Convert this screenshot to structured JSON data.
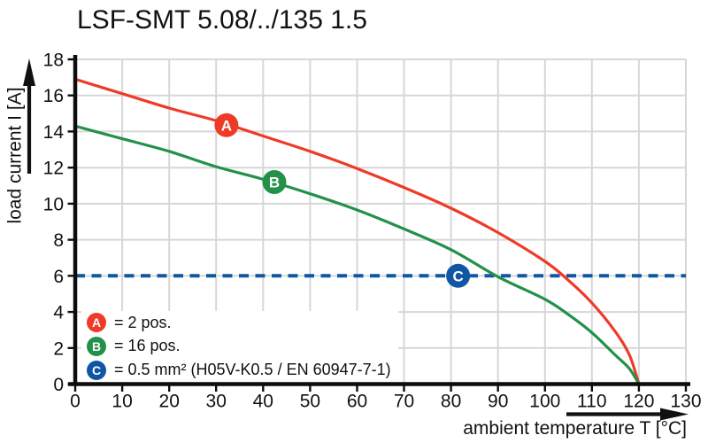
{
  "title": "LSF-SMT 5.08/../135 1.5",
  "chart_data": {
    "type": "line",
    "title": "LSF-SMT 5.08/../135 1.5",
    "xlabel": "ambient temperature T [°C]",
    "ylabel": "load current I [A]",
    "xlim": [
      0,
      130
    ],
    "ylim": [
      0,
      18
    ],
    "x_ticks": [
      0,
      10,
      20,
      30,
      40,
      50,
      60,
      70,
      80,
      90,
      100,
      110,
      120,
      130
    ],
    "y_ticks": [
      0,
      2,
      4,
      6,
      8,
      10,
      12,
      14,
      16,
      18
    ],
    "grid": true,
    "grid_color": "#d7d7d7",
    "legend_position": "inside-bottom-left",
    "series": [
      {
        "name": "A",
        "label": "= 2 pos.",
        "color": "#ee3b28",
        "dashed": false,
        "marker_at": [
          32.2,
          14.35
        ],
        "points": [
          [
            0,
            16.9
          ],
          [
            10,
            16.1
          ],
          [
            20,
            15.3
          ],
          [
            30,
            14.6
          ],
          [
            40,
            13.75
          ],
          [
            50,
            12.9
          ],
          [
            60,
            11.95
          ],
          [
            70,
            10.9
          ],
          [
            80,
            9.75
          ],
          [
            90,
            8.4
          ],
          [
            100,
            6.8
          ],
          [
            105,
            5.75
          ],
          [
            110,
            4.5
          ],
          [
            115,
            2.9
          ],
          [
            118,
            1.6
          ],
          [
            120,
            0
          ]
        ]
      },
      {
        "name": "B",
        "label": "= 16 pos.",
        "color": "#23914a",
        "dashed": false,
        "marker_at": [
          42.4,
          11.2
        ],
        "points": [
          [
            0,
            14.3
          ],
          [
            10,
            13.6
          ],
          [
            20,
            12.9
          ],
          [
            30,
            12.05
          ],
          [
            40,
            11.35
          ],
          [
            50,
            10.55
          ],
          [
            60,
            9.65
          ],
          [
            70,
            8.6
          ],
          [
            80,
            7.45
          ],
          [
            90,
            5.95
          ],
          [
            100,
            4.7
          ],
          [
            105,
            3.85
          ],
          [
            110,
            2.85
          ],
          [
            115,
            1.6
          ],
          [
            118,
            0.85
          ],
          [
            120,
            0
          ]
        ]
      },
      {
        "name": "C",
        "label": "= 0.5 mm² (H05V-K0.5 / EN 60947-7-1)",
        "color": "#1156a5",
        "dashed": true,
        "marker_at": [
          81.5,
          6
        ],
        "points": [
          [
            0,
            6
          ],
          [
            130,
            6
          ]
        ]
      }
    ]
  }
}
